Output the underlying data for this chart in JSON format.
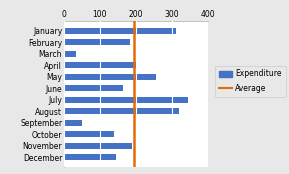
{
  "months": [
    "January",
    "February",
    "March",
    "April",
    "May",
    "June",
    "July",
    "August",
    "September",
    "October",
    "November",
    "December"
  ],
  "values": [
    310,
    185,
    35,
    200,
    255,
    165,
    345,
    320,
    50,
    140,
    190,
    145
  ],
  "average": 195,
  "bar_color": "#4472C4",
  "avg_line_color": "#E36C09",
  "xlim": [
    0,
    400
  ],
  "xticks": [
    0,
    100,
    200,
    300,
    400
  ],
  "outer_bg": "#E8E8E8",
  "plot_bg": "#FFFFFF",
  "grid_color": "#FFFFFF",
  "legend_labels": [
    "Expenditure",
    "Average"
  ],
  "tick_fontsize": 5.5,
  "legend_fontsize": 5.5,
  "bar_height": 0.55,
  "avg_linewidth": 1.8
}
